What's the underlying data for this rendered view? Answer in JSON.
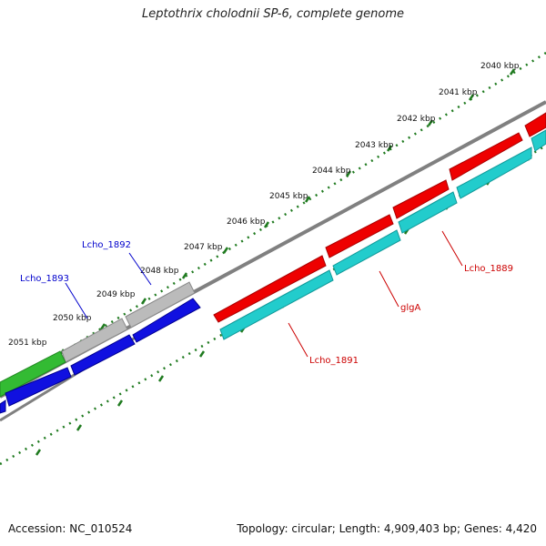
{
  "title": "Leptothrix cholodnii SP-6, complete genome",
  "accession": "Accession: NC_010524",
  "summary": "Topology: circular; Length: 4,909,403 bp; Genes: 4,420",
  "ticks": [
    "2040 kbp",
    "2041 kbp",
    "2042 kbp",
    "2043 kbp",
    "2044 kbp",
    "2045 kbp",
    "2046 kbp",
    "2047 kbp",
    "2048 kbp",
    "2049 kbp",
    "2050 kbp",
    "2051 kbp"
  ],
  "gene_labels": [
    "Lcho_1892",
    "Lcho_1893",
    "glgA",
    "Lcho_1889",
    "Lcho_1891"
  ],
  "colors": {
    "tick_green": "#1f7a1f",
    "backbone": "#808080",
    "red": "#ee0000",
    "cyan": "#22cccc",
    "blue": "#1010e0",
    "gray": "#bbbbbb",
    "green": "#33bb33",
    "label_blue": "#0000cc",
    "label_red": "#cc0000"
  }
}
